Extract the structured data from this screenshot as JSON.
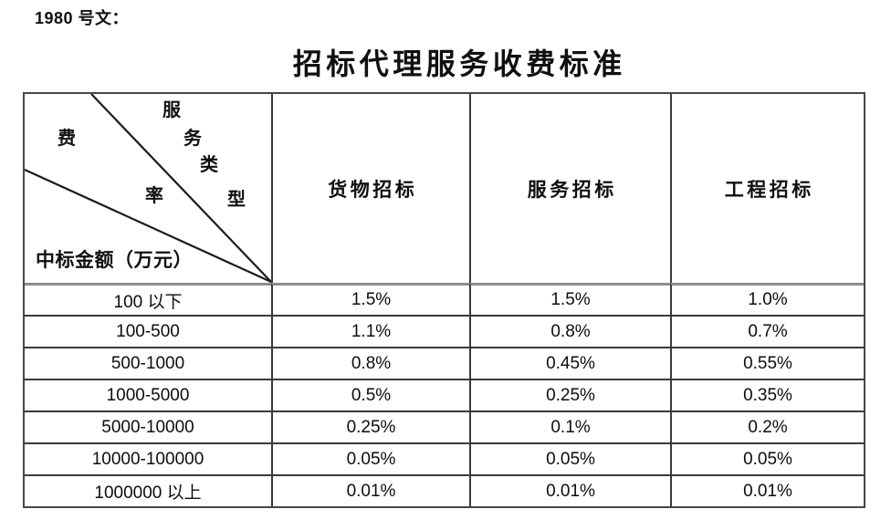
{
  "page": {
    "doc_ref": "1980 号文：",
    "title": "招标代理服务收费标准"
  },
  "table": {
    "corner": {
      "service_type_chars": [
        "服",
        "务",
        "类",
        "型"
      ],
      "fee_rate_chars": [
        "费",
        "率"
      ],
      "amount_label": "中标金额（万元）"
    },
    "columns": [
      "货物招标",
      "服务招标",
      "工程招标"
    ],
    "rows": [
      {
        "label": "100 以下",
        "values": [
          "1.5%",
          "1.5%",
          "1.0%"
        ]
      },
      {
        "label": "100-500",
        "values": [
          "1.1%",
          "0.8%",
          "0.7%"
        ]
      },
      {
        "label": "500-1000",
        "values": [
          "0.8%",
          "0.45%",
          "0.55%"
        ]
      },
      {
        "label": "1000-5000",
        "values": [
          "0.5%",
          "0.25%",
          "0.35%"
        ]
      },
      {
        "label": "5000-10000",
        "values": [
          "0.25%",
          "0.1%",
          "0.2%"
        ]
      },
      {
        "label": "10000-100000",
        "values": [
          "0.05%",
          "0.05%",
          "0.05%"
        ]
      },
      {
        "label": "1000000 以上",
        "values": [
          "0.01%",
          "0.01%",
          "0.01%"
        ]
      }
    ]
  }
}
